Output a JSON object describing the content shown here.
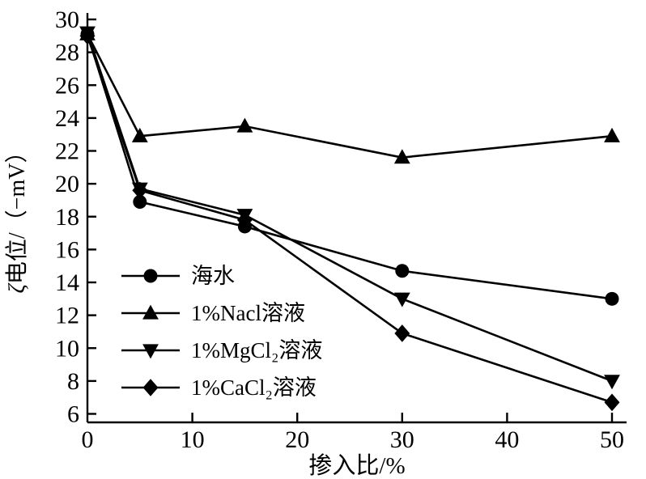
{
  "chart_data": {
    "type": "line",
    "title": "",
    "xlabel": "掺入比/%",
    "ylabel": "ζ电位/（−mV）",
    "ylabel_italic_prefix": "ζ",
    "ylabel_rest": "电位/（−mV）",
    "x": [
      0,
      5,
      15,
      30,
      50
    ],
    "xlim": [
      0,
      50
    ],
    "ylim": [
      6,
      30
    ],
    "x_ticks": [
      0,
      10,
      20,
      30,
      40,
      50
    ],
    "y_tick_step": 2,
    "grid": false,
    "legend_position": "inside-left-middle",
    "line_color": "#000000",
    "background_color": "#ffffff",
    "series": [
      {
        "name": "海水",
        "marker": "circle",
        "values": [
          29.1,
          18.9,
          17.4,
          14.7,
          13.0
        ]
      },
      {
        "name": "1%Nacl溶液",
        "marker": "triangle-up",
        "values": [
          29.1,
          22.9,
          23.5,
          21.6,
          22.9
        ]
      },
      {
        "name": "1%MgCl₂溶液",
        "marker": "triangle-down",
        "values": [
          29.2,
          19.7,
          18.1,
          13.0,
          8.0
        ]
      },
      {
        "name": "1%CaCl₂溶液",
        "marker": "diamond",
        "values": [
          29.0,
          19.6,
          17.8,
          10.9,
          6.7
        ]
      }
    ]
  }
}
